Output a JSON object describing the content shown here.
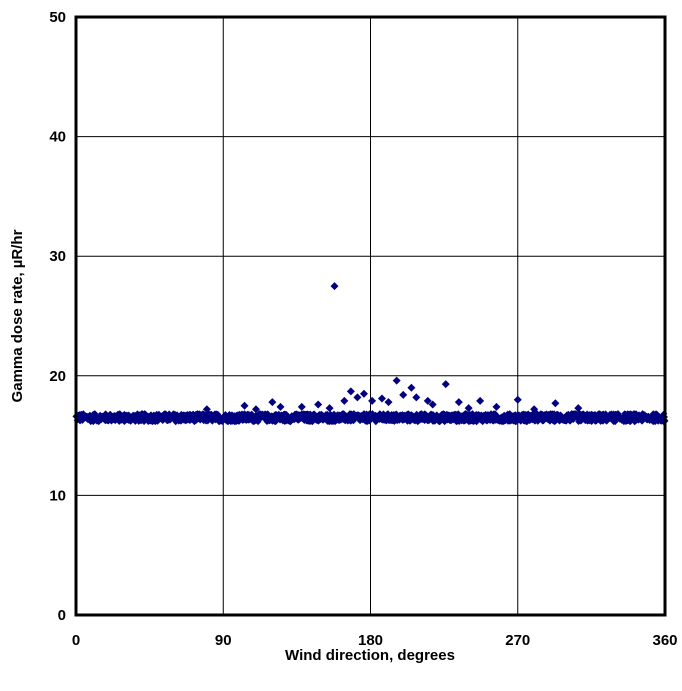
{
  "chart_data": {
    "type": "scatter",
    "title": "",
    "xlabel": "Wind direction, degrees",
    "ylabel": "Gamma dose rate, µR/hr",
    "xlim": [
      0,
      360
    ],
    "ylim": [
      0,
      50
    ],
    "x_ticks": [
      "0",
      "90",
      "180",
      "270",
      "360"
    ],
    "y_ticks": [
      "0",
      "10",
      "20",
      "30",
      "40",
      "50"
    ],
    "grid": true,
    "legend": "none",
    "marker": "diamond",
    "marker_color": "#000080",
    "baseline_band": {
      "x_range": [
        0,
        360
      ],
      "y_center": 16.5,
      "y_spread": 0.35
    },
    "series": [
      {
        "values": [
          {
            "x": 158,
            "y": 27.5
          },
          {
            "x": 196,
            "y": 19.6
          },
          {
            "x": 226,
            "y": 19.3
          },
          {
            "x": 205,
            "y": 19.0
          },
          {
            "x": 168,
            "y": 18.7
          },
          {
            "x": 176,
            "y": 18.5
          },
          {
            "x": 200,
            "y": 18.4
          },
          {
            "x": 208,
            "y": 18.2
          },
          {
            "x": 172,
            "y": 18.2
          },
          {
            "x": 187,
            "y": 18.1
          },
          {
            "x": 270,
            "y": 18.0
          },
          {
            "x": 164,
            "y": 17.9
          },
          {
            "x": 181,
            "y": 17.9
          },
          {
            "x": 215,
            "y": 17.9
          },
          {
            "x": 247,
            "y": 17.9
          },
          {
            "x": 120,
            "y": 17.8
          },
          {
            "x": 191,
            "y": 17.8
          },
          {
            "x": 234,
            "y": 17.8
          },
          {
            "x": 293,
            "y": 17.7
          },
          {
            "x": 148,
            "y": 17.6
          },
          {
            "x": 218,
            "y": 17.6
          },
          {
            "x": 103,
            "y": 17.5
          },
          {
            "x": 125,
            "y": 17.4
          },
          {
            "x": 138,
            "y": 17.4
          },
          {
            "x": 257,
            "y": 17.4
          },
          {
            "x": 307,
            "y": 17.3
          },
          {
            "x": 80,
            "y": 17.2
          },
          {
            "x": 110,
            "y": 17.2
          },
          {
            "x": 155,
            "y": 17.3
          },
          {
            "x": 240,
            "y": 17.3
          },
          {
            "x": 280,
            "y": 17.2
          }
        ]
      }
    ]
  }
}
